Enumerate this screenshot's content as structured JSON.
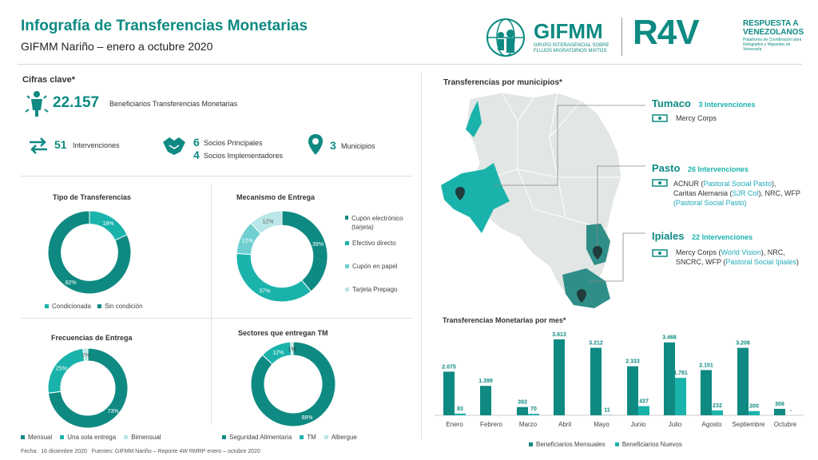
{
  "header": {
    "title": "Infografía de Transferencias Monetarias",
    "subtitle": "GIFMM Nariño – enero a octubre 2020",
    "gifmm_logo": "GIFMM",
    "gifmm_tag": "GRUPO INTERAGENCIAL SOBRE FLUJOS MIGRATORIOS MIXTOS",
    "r4v_logo": "R4V",
    "r4v_tag1": "RESPUESTA A",
    "r4v_tag2": "VENEZOLANOS",
    "r4v_tag3": "Plataforma de Coordinación para Refugiados y Migrantes de Venezuela"
  },
  "key_figures": {
    "title": "Cifras clave*",
    "beneficiaries_value": "22.157",
    "beneficiaries_label": "Beneficiarios Transferencias Monetarias",
    "interventions_value": "51",
    "interventions_label": "Intervenciones",
    "partners_main_value": "6",
    "partners_main_label": "Socios Principales",
    "partners_impl_value": "4",
    "partners_impl_label": "Socios Implementadores",
    "municipalities_value": "3",
    "municipalities_label": "Municipios"
  },
  "charts_titles": {
    "tipo": "Tipo de Transferencias",
    "mecanismo": "Mecanismo de Entrega",
    "frecuencia": "Frecuencias de Entrega",
    "sectores": "Sectores que entregan TM",
    "municipios": "Transferencias por municipios*",
    "mensual": "Transferencias Monetarias por mes*"
  },
  "chart_data": [
    {
      "type": "pie",
      "title": "Tipo de Transferencias",
      "categories": [
        "Condicionada",
        "Sin condición"
      ],
      "values": [
        18,
        82
      ],
      "labels": [
        "18%",
        "82%"
      ],
      "colors": [
        "#1ab3ac",
        "#0e8a82"
      ]
    },
    {
      "type": "pie",
      "title": "Mecanismo de Entrega",
      "categories": [
        "Cupón electrónico (tarjeta)",
        "Efectivo directo",
        "Cupón en papel",
        "Tarjeta Prepago"
      ],
      "values": [
        39,
        37,
        12,
        12
      ],
      "labels": [
        "39%",
        "37%",
        "12%",
        "12%"
      ],
      "colors": [
        "#0e8a82",
        "#1ab3ac",
        "#6fcfd0",
        "#b9e6e6"
      ]
    },
    {
      "type": "pie",
      "title": "Frecuencias de Entrega",
      "categories": [
        "Mensual",
        "Una sola entrega",
        "Bimensual"
      ],
      "values": [
        73,
        25,
        2
      ],
      "labels": [
        "73%",
        "25%",
        "2%"
      ],
      "colors": [
        "#0e8a82",
        "#1ab3ac",
        "#b9e6e6"
      ]
    },
    {
      "type": "pie",
      "title": "Sectores que entregan TM",
      "categories": [
        "Seguridad Alimentaria",
        "TM",
        "Albergue"
      ],
      "values": [
        88,
        12,
        1
      ],
      "labels": [
        "88%",
        "12%",
        "1%"
      ],
      "colors": [
        "#0e8a82",
        "#1ab3ac",
        "#b9e6e6"
      ]
    },
    {
      "type": "bar",
      "title": "Transferencias Monetarias por mes*",
      "categories": [
        "Enero",
        "Febrero",
        "Marzo",
        "Abril",
        "Mayo",
        "Junio",
        "Julio",
        "Agosto",
        "Septiembre",
        "Octubre"
      ],
      "series": [
        {
          "name": "Beneficiarios Mensuales",
          "values": [
            2075,
            1399,
            392,
            3613,
            3212,
            2333,
            3468,
            2151,
            3208,
            306
          ],
          "labels": [
            "2.075",
            "1.399",
            "392",
            "3.613",
            "3.212",
            "2.333",
            "3.468",
            "2.151",
            "3.208",
            "306"
          ],
          "color": "#0e8a82"
        },
        {
          "name": "Beneficiarios Nuevos",
          "values": [
            83,
            0,
            70,
            0,
            11,
            437,
            1781,
            232,
            200,
            0
          ],
          "labels": [
            "83",
            "",
            "70",
            "",
            "11",
            "437",
            "1.781",
            "232",
            "200",
            "-"
          ],
          "color": "#1ab3ac"
        }
      ],
      "ylim": [
        0,
        3800
      ]
    }
  ],
  "legends": {
    "tipo": [
      "Condicionada",
      "Sin condición"
    ],
    "mecanismo": [
      "Cupón electrónico (tarjeta)",
      "Efectivo directo",
      "Cupón en papel",
      "Tarjeta Prepago"
    ],
    "frecuencia": [
      "Mensual",
      "Una sola entrega",
      "Bimensual"
    ],
    "sectores": [
      "Seguridad Alimentaria",
      "TM",
      "Albergue"
    ],
    "mensual": [
      "Beneficiarios Mensuales",
      "Beneficiarios Nuevos"
    ]
  },
  "municipios": {
    "tumaco_name": "Tumaco",
    "tumaco_count": "3 Intervenciones",
    "tumaco_partners": "Mercy Corps",
    "pasto_name": "Pasto",
    "pasto_count": "26 Intervenciones",
    "pasto_line1a": "ACNUR (",
    "pasto_line1b": "Pastoral Social Pasto",
    "pasto_line1c": "),",
    "pasto_line2a": "Caritas Alemania (",
    "pasto_line2b": "SJR Col",
    "pasto_line2c": "), NRC, WFP",
    "pasto_line3": "(Pastoral Social Pasto)",
    "ipiales_name": "Ipiales",
    "ipiales_count": "22 Intervenciones",
    "ipiales_line1a": "Mercy Corps (",
    "ipiales_line1b": "World Vision",
    "ipiales_line1c": "), NRC,",
    "ipiales_line2a": "SNCRC, WFP (",
    "ipiales_line2b": "Pastoral Social Ipiales",
    "ipiales_line2c": ")"
  },
  "footer": {
    "text": "Fecha:  16 diciembre 2020   Fuentes: GIFMM Nariño – Reporte 4W RMRP enero – octubre 2020"
  }
}
